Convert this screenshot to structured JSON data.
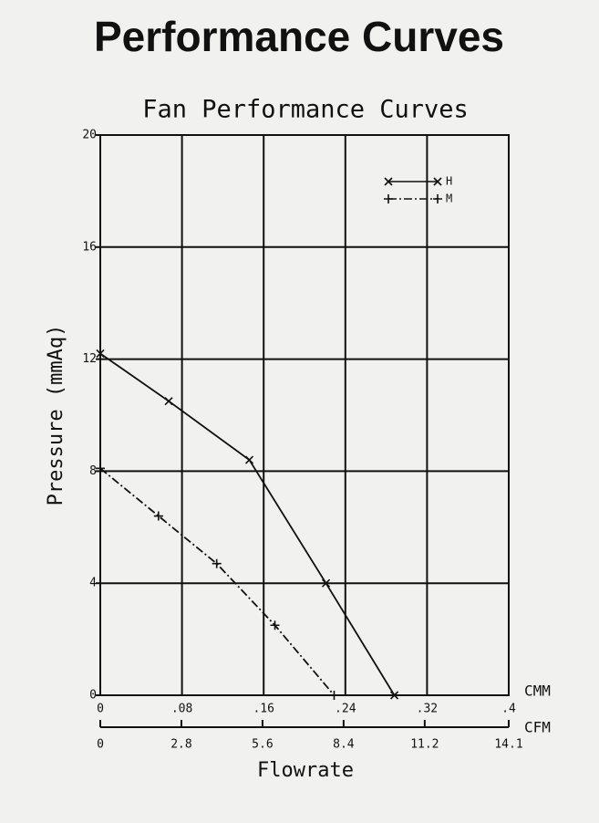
{
  "header": {
    "title": "Performance Curves"
  },
  "chart_data": {
    "type": "line",
    "title": "Fan Performance Curves",
    "x_label": "Flowrate",
    "y_label": "Pressure (mmAq)",
    "x_unit": "CMM",
    "x2_unit": "CFM",
    "xlim": [
      0,
      0.4
    ],
    "xticks": [
      0,
      {
        "value": 0.08,
        "label": ".08"
      },
      {
        "value": 0.16,
        "label": ".16"
      },
      {
        "value": 0.24,
        "label": ".24"
      },
      {
        "value": 0.32,
        "label": ".32"
      },
      {
        "value": 0.4,
        "label": ".4"
      }
    ],
    "x2lim": [
      0,
      14.1
    ],
    "x2ticks": [
      0,
      2.8,
      5.6,
      8.4,
      11.2,
      14.1
    ],
    "ylim": [
      0,
      20
    ],
    "yticks": [
      0,
      4,
      8,
      12,
      16,
      20
    ],
    "grid": true,
    "legend": "upper right",
    "series": [
      {
        "name": "H",
        "color": "#111111",
        "line": "solid",
        "marker": "x",
        "x": [
          0,
          0.067,
          0.146,
          0.221,
          0.288
        ],
        "values": [
          12.2,
          10.5,
          8.4,
          4.0,
          0
        ]
      },
      {
        "name": "M",
        "color": "#111111",
        "line": "dashdot",
        "marker": "+",
        "x": [
          0,
          0.057,
          0.114,
          0.171,
          0.229
        ],
        "values": [
          8.1,
          6.4,
          4.7,
          2.5,
          0
        ]
      }
    ]
  }
}
